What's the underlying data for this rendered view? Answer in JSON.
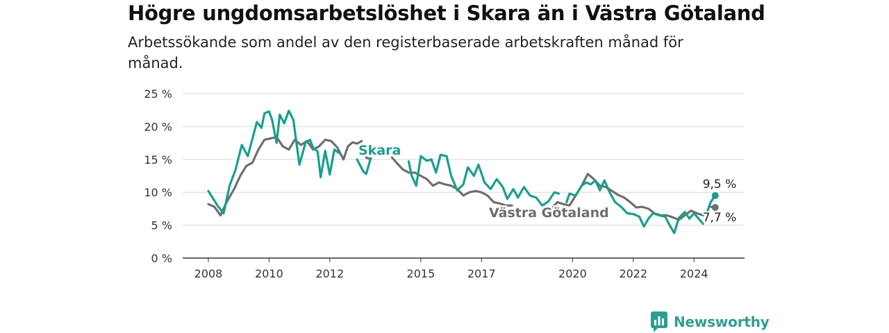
{
  "header": {
    "title": "Högre ungdomsarbetslöshet i Skara än i Västra Götaland",
    "subtitle": "Arbetssökande som andel av den registerbaserade arbetskraften månad för månad."
  },
  "brand": {
    "name": "Newsworthy",
    "color": "#2e9e92"
  },
  "chart_data": {
    "type": "line",
    "y_ticks": [
      "0 %",
      "5 %",
      "10 %",
      "15 %",
      "20 %",
      "25 %"
    ],
    "ylim": [
      0,
      25
    ],
    "x_ticks": [
      "2008",
      "2010",
      "2012",
      "2015",
      "2017",
      "2020",
      "2022",
      "2024"
    ],
    "x_tick_values": [
      2008,
      2010,
      2012,
      2015,
      2017,
      2020,
      2022,
      2024
    ],
    "xlim": [
      2007.55,
      2025.75
    ],
    "grid": true,
    "series": [
      {
        "name": "Skara",
        "color": "#1a9e8f",
        "end_label": "9,5 %",
        "x": [
          2008.0,
          2008.3,
          2008.5,
          2008.7,
          2008.9,
          2009.1,
          2009.3,
          2009.5,
          2009.6,
          2009.75,
          2009.85,
          2010.0,
          2010.1,
          2010.25,
          2010.35,
          2010.5,
          2010.65,
          2010.8,
          2011.0,
          2011.2,
          2011.35,
          2011.45,
          2011.6,
          2011.7,
          2011.85,
          2012.0,
          2012.15,
          2012.3,
          2012.45,
          2012.6,
          2012.75,
          2012.85,
          2012.9,
          2013.1,
          2013.2,
          2013.35,
          2013.45,
          null,
          2014.6,
          2014.7,
          2014.85,
          2015.0,
          2015.2,
          2015.35,
          2015.5,
          2015.65,
          2015.85,
          2016.0,
          2016.2,
          2016.4,
          2016.55,
          2016.75,
          2016.9,
          2017.1,
          2017.3,
          2017.5,
          2017.7,
          2017.85,
          2018.05,
          2018.2,
          2018.4,
          2018.6,
          2018.8,
          2019.0,
          2019.2,
          2019.4,
          2019.55,
          null,
          2019.8,
          2019.9,
          2020.1,
          2020.3,
          2020.45,
          2020.6,
          2020.75,
          2020.9,
          2021.05,
          2021.2,
          2021.4,
          2021.6,
          2021.8,
          2022.0,
          2022.2,
          2022.35,
          2022.5,
          2022.65,
          2022.85,
          2023.05,
          2023.2,
          2023.35,
          2023.5,
          2023.7,
          2023.85,
          2024.0,
          2024.15,
          2024.3,
          null,
          2024.45,
          2024.55,
          2024.7
        ],
        "y": [
          10.2,
          8.0,
          6.8,
          11.0,
          13.5,
          17.2,
          15.5,
          19.0,
          20.7,
          19.8,
          22.0,
          22.3,
          21.0,
          17.5,
          21.8,
          20.5,
          22.4,
          21.0,
          14.2,
          17.5,
          18.0,
          16.8,
          16.2,
          12.3,
          16.3,
          12.7,
          16.5,
          16.0,
          null,
          null,
          null,
          null,
          15.0,
          13.2,
          12.8,
          15.2,
          null,
          null,
          14.7,
          12.5,
          11.0,
          15.5,
          14.8,
          15.0,
          13.0,
          15.7,
          15.5,
          12.5,
          10.3,
          11.2,
          13.8,
          12.5,
          14.2,
          11.5,
          10.5,
          12.0,
          10.8,
          9.0,
          10.5,
          9.2,
          10.8,
          9.5,
          9.2,
          8.0,
          8.6,
          10.0,
          9.8,
          null,
          8.5,
          9.8,
          9.5,
          11.0,
          11.5,
          11.2,
          11.8,
          10.3,
          11.8,
          10.2,
          8.5,
          7.8,
          6.8,
          6.7,
          6.3,
          4.8,
          6.0,
          6.8,
          6.5,
          6.3,
          5.0,
          3.8,
          6.1,
          7.0,
          6.0,
          6.8,
          6.0,
          5.2,
          null,
          7.2,
          8.5,
          9.5
        ]
      },
      {
        "name": "Västra Götaland",
        "color": "#6e6e70",
        "end_label": "7,7 %",
        "x": [
          2008.0,
          2008.2,
          2008.4,
          2008.6,
          2008.85,
          2009.05,
          2009.25,
          2009.45,
          2009.65,
          2009.85,
          2010.05,
          2010.25,
          2010.45,
          2010.65,
          2010.85,
          2011.05,
          2011.25,
          2011.45,
          2011.65,
          2011.85,
          2012.05,
          2012.25,
          2012.45,
          2012.6,
          2012.75,
          2012.9,
          2013.05,
          null,
          2013.2,
          2013.35,
          null,
          2014.05,
          2014.2,
          2014.4,
          2014.6,
          2014.8,
          2015.0,
          2015.2,
          2015.4,
          2015.6,
          2015.8,
          2016.0,
          2016.2,
          2016.4,
          2016.6,
          2016.8,
          2017.0,
          2017.2,
          2017.4,
          2017.6,
          2017.8,
          2018.0,
          null,
          2019.1,
          2019.3,
          2019.5,
          2019.7,
          2019.9,
          2020.1,
          2020.3,
          2020.5,
          2020.7,
          2020.9,
          2021.1,
          2021.3,
          2021.5,
          2021.7,
          2021.9,
          2022.1,
          2022.3,
          2022.5,
          2022.7,
          2022.9,
          2023.1,
          2023.3,
          2023.5,
          2023.7,
          2023.9,
          2024.1,
          2024.3,
          null,
          2024.55,
          2024.7
        ],
        "y": [
          8.2,
          7.8,
          6.5,
          8.5,
          10.5,
          12.5,
          14.0,
          14.5,
          16.5,
          18.0,
          18.2,
          18.4,
          17.0,
          16.5,
          18.0,
          17.2,
          17.8,
          16.5,
          17.0,
          18.0,
          17.8,
          16.8,
          15.0,
          17.0,
          17.6,
          17.4,
          17.8,
          null,
          15.3,
          15.0,
          null,
          15.3,
          14.5,
          13.5,
          13.0,
          13.0,
          12.5,
          12.0,
          11.0,
          11.5,
          11.2,
          11.0,
          10.5,
          9.5,
          10.0,
          10.2,
          10.0,
          9.5,
          8.5,
          8.3,
          8.0,
          8.0,
          null,
          7.8,
          7.5,
          8.5,
          8.2,
          8.0,
          9.5,
          11.0,
          12.8,
          12.0,
          11.0,
          10.8,
          10.2,
          9.6,
          9.2,
          8.5,
          7.7,
          7.8,
          7.5,
          6.8,
          6.5,
          6.5,
          6.2,
          5.8,
          6.5,
          7.2,
          6.8,
          6.5,
          null,
          7.8,
          7.7
        ]
      }
    ],
    "annotations": [
      {
        "text": "Skara",
        "series": "Skara"
      },
      {
        "text": "Västra Götaland",
        "series": "Västra Götaland"
      }
    ]
  }
}
